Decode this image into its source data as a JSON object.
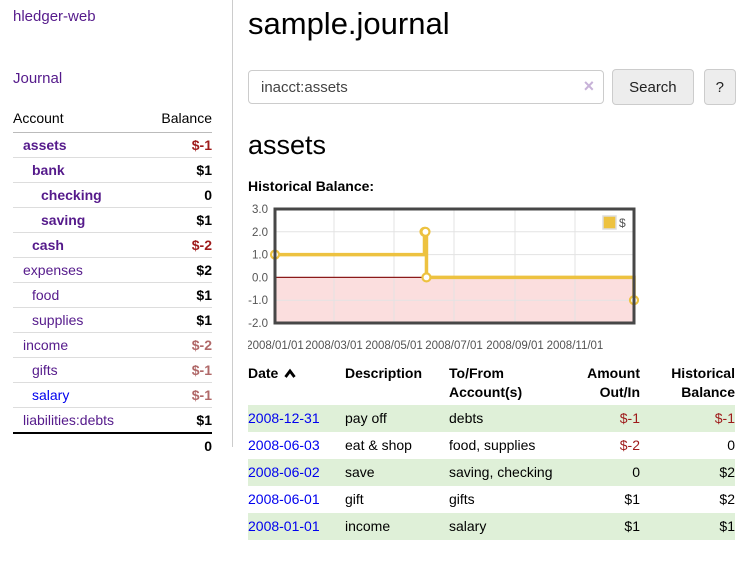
{
  "app": {
    "title": "hledger-web"
  },
  "nav": {
    "journal_label": "Journal"
  },
  "sidebar": {
    "columns": {
      "account": "Account",
      "balance": "Balance"
    },
    "accounts": [
      {
        "label": "assets",
        "balance": "$-1",
        "depth": 1,
        "bold": true,
        "neg": true
      },
      {
        "label": "bank",
        "balance": "$1",
        "depth": 2,
        "bold": true,
        "neg": false
      },
      {
        "label": "checking",
        "balance": "0",
        "depth": 3,
        "bold": true,
        "neg": false
      },
      {
        "label": "saving",
        "balance": "$1",
        "depth": 3,
        "bold": true,
        "neg": false
      },
      {
        "label": "cash",
        "balance": "$-2",
        "depth": 2,
        "bold": true,
        "neg": true
      },
      {
        "label": "expenses",
        "balance": "$2",
        "depth": 1,
        "bold": false,
        "neg": false
      },
      {
        "label": "food",
        "balance": "$1",
        "depth": 2,
        "bold": false,
        "neg": false
      },
      {
        "label": "supplies",
        "balance": "$1",
        "depth": 2,
        "bold": false,
        "neg": false
      },
      {
        "label": "income",
        "balance": "$-2",
        "depth": 1,
        "bold": false,
        "neg": true
      },
      {
        "label": "gifts",
        "balance": "$-1",
        "depth": 2,
        "bold": false,
        "neg": true
      },
      {
        "label": "salary",
        "balance": "$-1",
        "depth": 2,
        "bold": false,
        "neg": true,
        "unvisited": true
      },
      {
        "label": "liabilities:debts",
        "balance": "$1",
        "depth": 1,
        "bold": false,
        "neg": false
      }
    ],
    "total": "0"
  },
  "header": {
    "title": "sample.journal"
  },
  "search": {
    "value": "inacct:assets",
    "clear_icon": "×",
    "button_label": "Search",
    "help_label": "?"
  },
  "content": {
    "heading": "assets",
    "chart_label": "Historical Balance:"
  },
  "chart_data": {
    "type": "line",
    "mode": "steps",
    "title": "Historical Balance:",
    "series": [
      {
        "name": "$",
        "color": "#edc240",
        "points": [
          [
            "2008-01-01",
            1
          ],
          [
            "2008-06-01",
            2
          ],
          [
            "2008-06-02",
            2
          ],
          [
            "2008-06-03",
            0
          ],
          [
            "2008-12-31",
            -1
          ]
        ]
      }
    ],
    "x_ticks": [
      "2008/01/01",
      "2008/03/01",
      "2008/05/01",
      "2008/07/01",
      "2008/09/01",
      "2008/11/01"
    ],
    "y_ticks": [
      "3.0",
      "2.0",
      "1.0",
      "0.0",
      "-1.0",
      "-2.0"
    ],
    "ylim": [
      -2,
      3
    ],
    "xlim": [
      "2008-01-01",
      "2008-12-31"
    ],
    "legend_position": "top-right",
    "grid": true,
    "colors": {
      "negative_fill": "#fbdede",
      "zero_line": "#8b1a1a",
      "grid": "#e3e3e3",
      "plot_border": "#474747",
      "axis_text": "#545454"
    }
  },
  "table": {
    "columns": [
      {
        "label": "Date",
        "align": "left",
        "sorted": "ascending"
      },
      {
        "label": "Description",
        "align": "left"
      },
      {
        "label": "To/From Account(s)",
        "align": "left"
      },
      {
        "label": "Amount Out/In",
        "align": "right"
      },
      {
        "label": "Historical Balance",
        "align": "right"
      }
    ],
    "rows": [
      {
        "date": "2008-12-31",
        "description": "pay off",
        "accounts": "debts",
        "amount": "$-1",
        "balance": "$-1"
      },
      {
        "date": "2008-06-03",
        "description": "eat & shop",
        "accounts": "food, supplies",
        "amount": "$-2",
        "balance": "0"
      },
      {
        "date": "2008-06-02",
        "description": "save",
        "accounts": "saving, checking",
        "amount": "0",
        "balance": "$2"
      },
      {
        "date": "2008-06-01",
        "description": "gift",
        "accounts": "gifts",
        "amount": "$1",
        "balance": "$2"
      },
      {
        "date": "2008-01-01",
        "description": "income",
        "accounts": "salary",
        "amount": "$1",
        "balance": "$1"
      }
    ]
  },
  "colors": {
    "link_purple": "#551a8b",
    "link_blue": "#0000ee",
    "negative_strong": "#9e1a1a",
    "negative_muted": "#b06868",
    "row_highlight": "#dff0d8"
  }
}
